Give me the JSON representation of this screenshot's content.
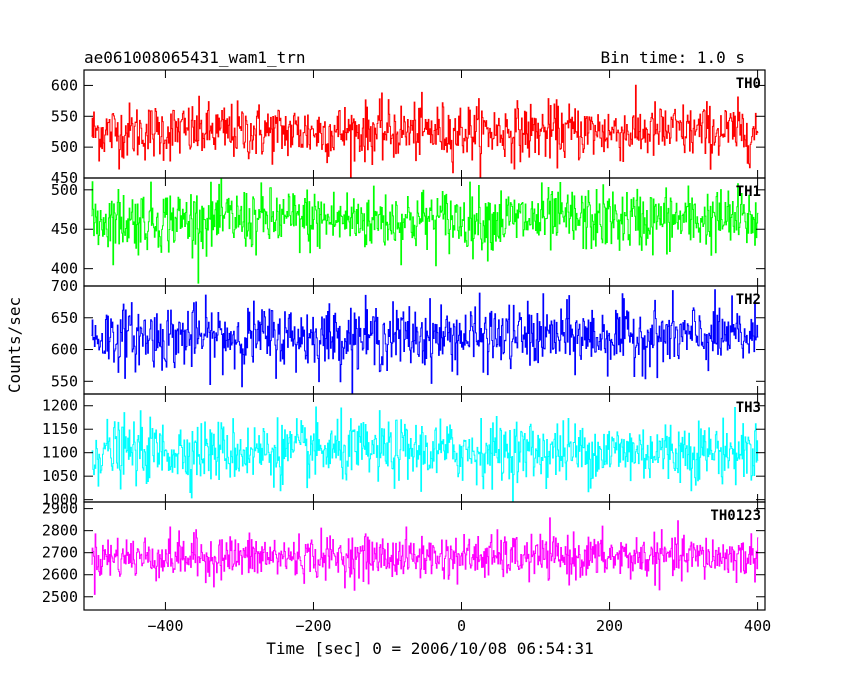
{
  "header": {
    "left": "ae061008065431_wam1_trn",
    "right": "Bin time: 1.0 s"
  },
  "chart_data": {
    "type": "line",
    "xlabel": "Time [sec] 0 = 2006/10/08 06:54:31",
    "ylabel": "Counts/sec",
    "xlim": [
      -510,
      410
    ],
    "xticks": [
      -400,
      -200,
      0,
      200,
      400
    ],
    "xtick_labels": [
      "−400",
      "−200",
      "0",
      "200",
      "400"
    ],
    "bin_time_sec": 1.0,
    "x_range": [
      -500,
      400
    ],
    "grid": false,
    "panels": [
      {
        "name": "TH0",
        "color": "#ff0000",
        "ylim": [
          450,
          625
        ],
        "yticks": [
          450,
          500,
          550,
          600
        ],
        "mean": 525,
        "spread": 23,
        "values_summary": {
          "typical_min": 480,
          "typical_max": 575,
          "peak_min": 450,
          "peak_max": 625
        }
      },
      {
        "name": "TH1",
        "color": "#00ff00",
        "ylim": [
          378,
          515
        ],
        "yticks": [
          400,
          450,
          500
        ],
        "mean": 462,
        "spread": 20,
        "values_summary": {
          "typical_min": 425,
          "typical_max": 500,
          "peak_min": 380,
          "peak_max": 510
        }
      },
      {
        "name": "TH2",
        "color": "#0000ff",
        "ylim": [
          530,
          700
        ],
        "yticks": [
          550,
          600,
          650,
          700
        ],
        "mean": 620,
        "spread": 25,
        "values_summary": {
          "typical_min": 575,
          "typical_max": 670,
          "peak_min": 530,
          "peak_max": 700
        }
      },
      {
        "name": "TH3",
        "color": "#00ffff",
        "ylim": [
          995,
          1225
        ],
        "yticks": [
          1000,
          1050,
          1100,
          1150,
          1200
        ],
        "mean": 1103,
        "spread": 33,
        "values_summary": {
          "typical_min": 1040,
          "typical_max": 1170,
          "peak_min": 995,
          "peak_max": 1225
        }
      },
      {
        "name": "TH0123",
        "color": "#ff00ff",
        "ylim": [
          2440,
          2930
        ],
        "yticks": [
          2500,
          2600,
          2700,
          2800,
          2900
        ],
        "mean": 2680,
        "spread": 50,
        "values_summary": {
          "typical_min": 2580,
          "typical_max": 2780,
          "peak_min": 2440,
          "peak_max": 2920
        }
      }
    ]
  }
}
